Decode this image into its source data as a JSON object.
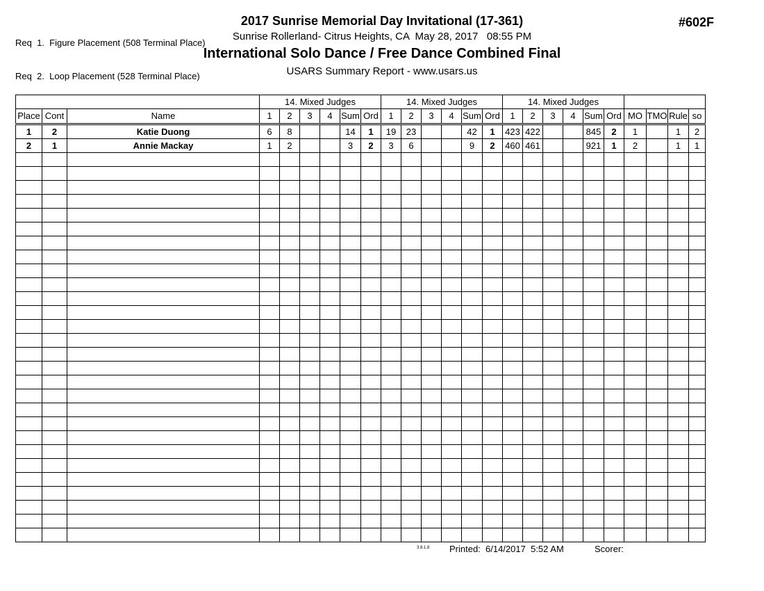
{
  "header": {
    "req_lines": [
      "Req  1.  Figure Placement (508 Terminal Place)",
      "Req  2.  Loop Placement (528 Terminal Place)"
    ],
    "title": "2017 Sunrise Memorial Day Invitational (17-361)",
    "venue_line": "Sunrise Rollerland- Citrus Heights, CA  May 28, 2017   08:55 PM",
    "event_title": "International Solo Dance / Free Dance Combined Final",
    "report_title": "USARS Summary Report - www.usars.us",
    "event_number": "#602F"
  },
  "table": {
    "judge_group_label": "14.   Mixed Judges",
    "columns": {
      "place": "Place",
      "cont": "Cont",
      "name": "Name",
      "judge": [
        "1",
        "2",
        "3",
        "4"
      ],
      "sum": "Sum",
      "ord": "Ord",
      "mo": "MO",
      "tmo": "TMO",
      "rule": "Rule",
      "so": "so"
    },
    "rows": [
      {
        "place": "1",
        "cont": "2",
        "name": "Katie Duong",
        "groups": [
          {
            "judges": [
              "6",
              "8",
              "",
              ""
            ],
            "sum": "14",
            "ord": "1"
          },
          {
            "judges": [
              "19",
              "23",
              "",
              ""
            ],
            "sum": "42",
            "ord": "1"
          },
          {
            "judges": [
              "423",
              "422",
              "",
              ""
            ],
            "sum": "845",
            "ord": "2"
          }
        ],
        "mo": "1",
        "tmo": "",
        "rule": "1",
        "so": "2"
      },
      {
        "place": "2",
        "cont": "1",
        "name": "Annie Mackay",
        "groups": [
          {
            "judges": [
              "1",
              "2",
              "",
              ""
            ],
            "sum": "3",
            "ord": "2"
          },
          {
            "judges": [
              "3",
              "6",
              "",
              ""
            ],
            "sum": "9",
            "ord": "2"
          },
          {
            "judges": [
              "460",
              "461",
              "",
              ""
            ],
            "sum": "921",
            "ord": "1"
          }
        ],
        "mo": "2",
        "tmo": "",
        "rule": "1",
        "so": "1"
      }
    ],
    "empty_row_count": 28
  },
  "footer": {
    "version": "3.8.1.8",
    "printed": "Printed:  6/14/2017  5:52 AM",
    "scorer": "Scorer:"
  }
}
